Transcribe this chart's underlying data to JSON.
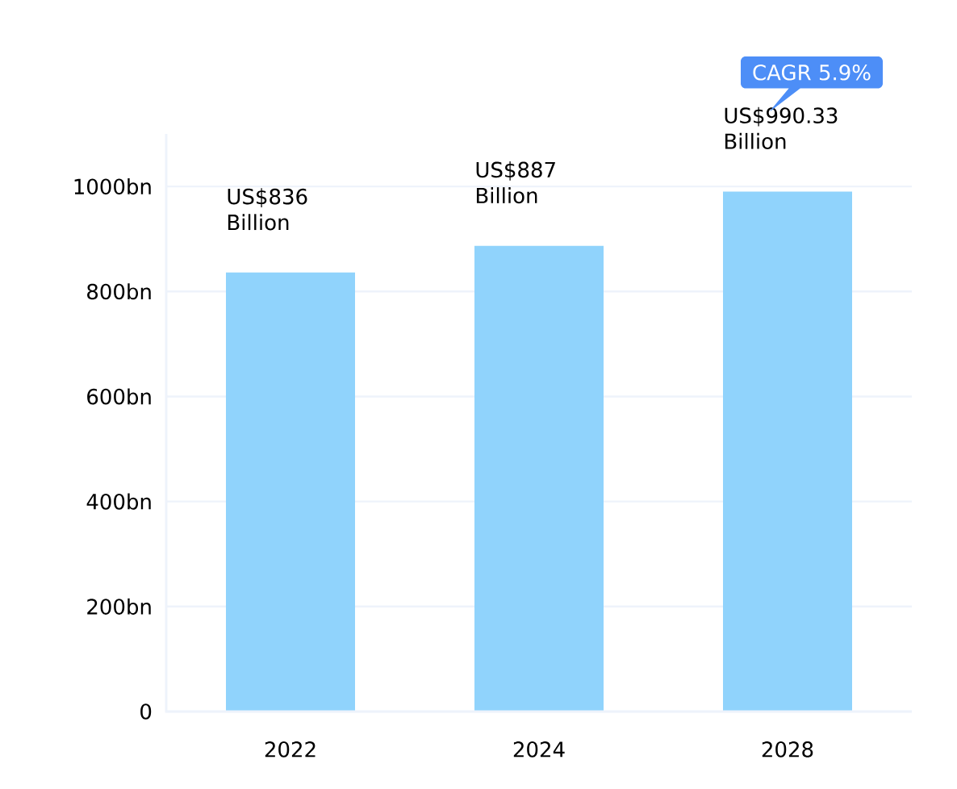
{
  "chart_data": {
    "type": "bar",
    "categories": [
      "2022",
      "2024",
      "2028"
    ],
    "values": [
      836,
      887,
      990.33
    ],
    "value_labels": [
      "US$836 Billion",
      "US$887 Billion",
      "US$990.33 Billion"
    ],
    "color": "#90d3fc",
    "ylim": [
      0,
      1100
    ],
    "yticks": [
      0,
      {
        "value": 200,
        "label": "200bn"
      },
      {
        "value": 400,
        "label": "400bn"
      },
      {
        "value": 600,
        "label": "600bn"
      },
      {
        "value": 800,
        "label": "800bn"
      },
      {
        "value": 1000,
        "label": "1000bn"
      }
    ],
    "grid": "y",
    "annotations": [
      "CAGR 5.9%"
    ]
  }
}
